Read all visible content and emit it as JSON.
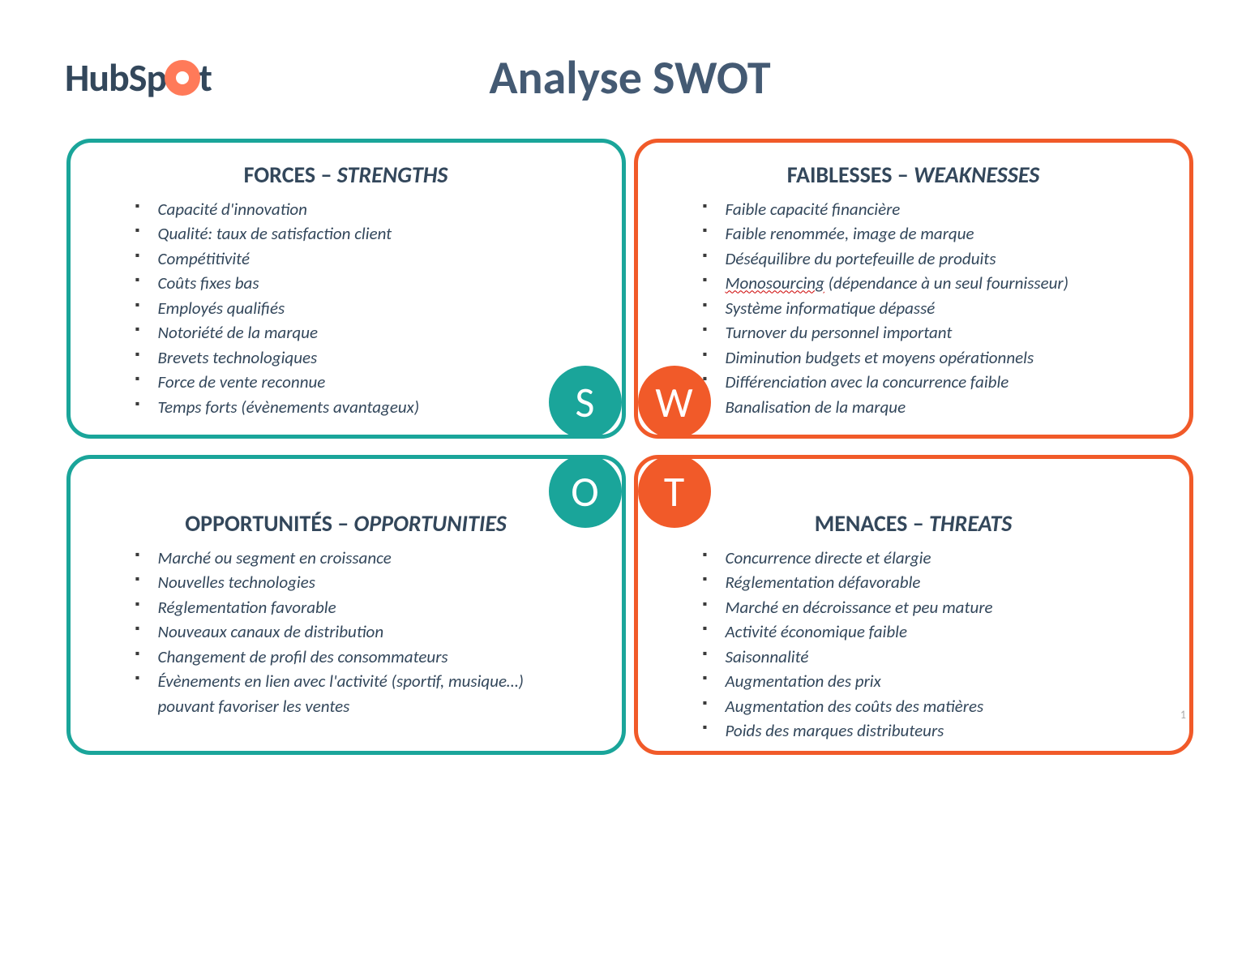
{
  "logo": {
    "prefix": "HubSp",
    "suffix": "t"
  },
  "title": "Analyse SWOT",
  "colors": {
    "teal": "#1aa59a",
    "orange": "#f15a29",
    "text": "#33475b"
  },
  "badges": {
    "s": "S",
    "w": "W",
    "o": "O",
    "t": "T"
  },
  "quadrants": {
    "strengths": {
      "heading_fr": "FORCES",
      "heading_en": "STRENGTHS",
      "items": [
        "Capacité d'innovation",
        "Qualité: taux de satisfaction client",
        "Compétitivité",
        "Coûts fixes bas",
        "Employés qualifiés",
        "Notoriété de la marque",
        "Brevets technologiques",
        "Force de vente reconnue",
        "Temps forts (évènements avantageux)"
      ]
    },
    "weaknesses": {
      "heading_fr": "FAIBLESSES",
      "heading_en": "WEAKNESSES",
      "items": [
        "Faible capacité financière",
        "Faible renommée, image de marque",
        "Déséquilibre du portefeuille de produits",
        {
          "underlined": "Monosourcing",
          "rest": " (dépendance à un seul fournisseur)"
        },
        "Système informatique dépassé",
        "Turnover du personnel important",
        "Diminution budgets et moyens opérationnels",
        "Différenciation avec la concurrence faible",
        "Banalisation de la marque"
      ]
    },
    "opportunities": {
      "heading_fr": "OPPORTUNITÉS",
      "heading_en": "OPPORTUNITIES",
      "items": [
        "Marché ou segment en croissance",
        "Nouvelles technologies",
        "Réglementation favorable",
        "Nouveaux canaux de distribution",
        "Changement de profil des consommateurs",
        "Évènements en lien avec l'activité (sportif, musique…) pouvant favoriser les ventes"
      ]
    },
    "threats": {
      "heading_fr": "MENACES",
      "heading_en": "THREATS",
      "items": [
        "Concurrence directe et élargie",
        "Réglementation défavorable",
        "Marché en décroissance et peu mature",
        "Activité économique faible",
        "Saisonnalité",
        "Augmentation des prix",
        "Augmentation des coûts des matières",
        "Poids des marques distributeurs"
      ]
    }
  },
  "page_number": "1"
}
